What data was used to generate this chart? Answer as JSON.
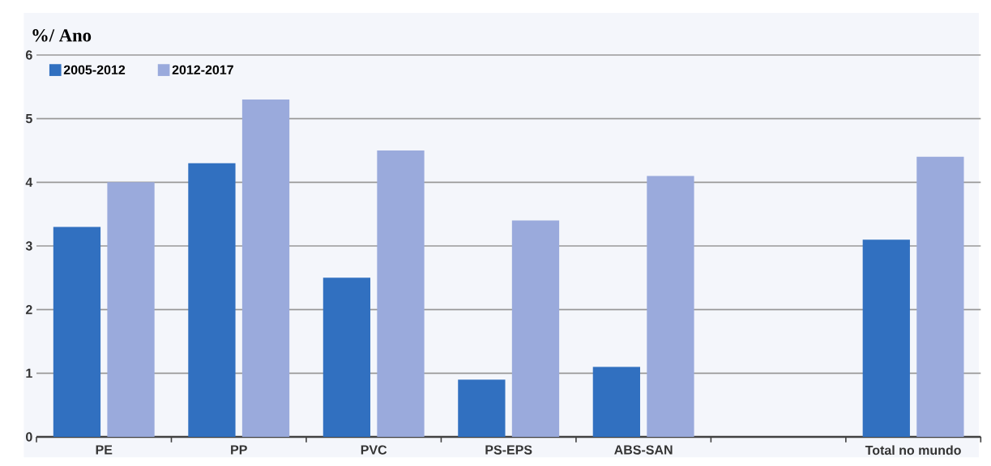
{
  "chart_data": {
    "type": "bar",
    "ylabel": "%/ Ano",
    "categories": [
      "PE",
      "PP",
      "PVC",
      "PS-EPS",
      "ABS-SAN",
      null,
      "Total no mundo"
    ],
    "series": [
      {
        "name": "2005-2012",
        "color": "#3170c0",
        "values": [
          3.3,
          4.3,
          2.5,
          0.9,
          1.1,
          null,
          3.1
        ]
      },
      {
        "name": "2012-2017",
        "color": "#9aaadc",
        "values": [
          4.0,
          5.3,
          4.5,
          3.4,
          4.1,
          null,
          4.4
        ]
      }
    ],
    "ylim": [
      0,
      6
    ],
    "yticks": [
      0,
      1,
      2,
      3,
      4,
      5,
      6
    ],
    "grid": "y",
    "legend": "top left"
  }
}
